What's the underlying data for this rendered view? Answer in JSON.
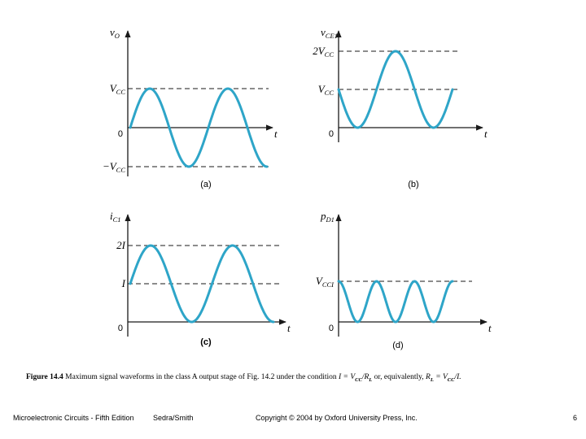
{
  "colors": {
    "wave": "#2ea5c8",
    "axis": "#1a1a1a",
    "dash": "#1a1a1a"
  },
  "panels": [
    {
      "id": "a",
      "label": "(a)",
      "y_axis_label": "vO",
      "x_axis_label": "t",
      "origin_label": "0",
      "levels": [
        {
          "label": "VCC",
          "value": 1
        },
        {
          "label": "−VCC",
          "value": -1
        }
      ],
      "waveform": {
        "offset": 0,
        "amplitude": 1,
        "cycles": 1.75
      }
    },
    {
      "id": "b",
      "label": "(b)",
      "y_axis_label": "vCE1",
      "x_axis_label": "t",
      "origin_label": "0",
      "levels": [
        {
          "label": "2VCC",
          "value": 2
        },
        {
          "label": "VCC",
          "value": 1
        }
      ],
      "waveform": {
        "offset": 1,
        "amplitude": 1,
        "cycles": 1.5,
        "phase": "inverted"
      }
    },
    {
      "id": "c",
      "label": "(c)",
      "y_axis_label": "iC1",
      "x_axis_label": "t",
      "origin_label": "0",
      "levels": [
        {
          "label": "2I",
          "value": 2
        },
        {
          "label": "I",
          "value": 1
        }
      ],
      "waveform": {
        "offset": 1,
        "amplitude": 1,
        "cycles": 1.75
      }
    },
    {
      "id": "d",
      "label": "(d)",
      "y_axis_label": "pD1",
      "x_axis_label": "t",
      "origin_label": "0",
      "levels": [
        {
          "label": "VCCI",
          "value": 1
        }
      ],
      "waveform": {
        "offset": 0.5,
        "amplitude": 0.5,
        "cycles": 3,
        "phase": "cosine"
      }
    }
  ],
  "caption": {
    "figure_number": "Figure 14.4",
    "text_before": "Maximum signal waveforms in the class A output stage of Fig. 14.2 under the condition",
    "condition": "I = VCC/RL",
    "text_middle": "or, equivalently,",
    "equivalent": "RL = VCC/I."
  },
  "footer": {
    "book": "Microelectronic Circuits - Fifth Edition",
    "authors": "Sedra/Smith",
    "copyright": "Copyright © 2004 by Oxford University Press, Inc.",
    "page": "6"
  }
}
